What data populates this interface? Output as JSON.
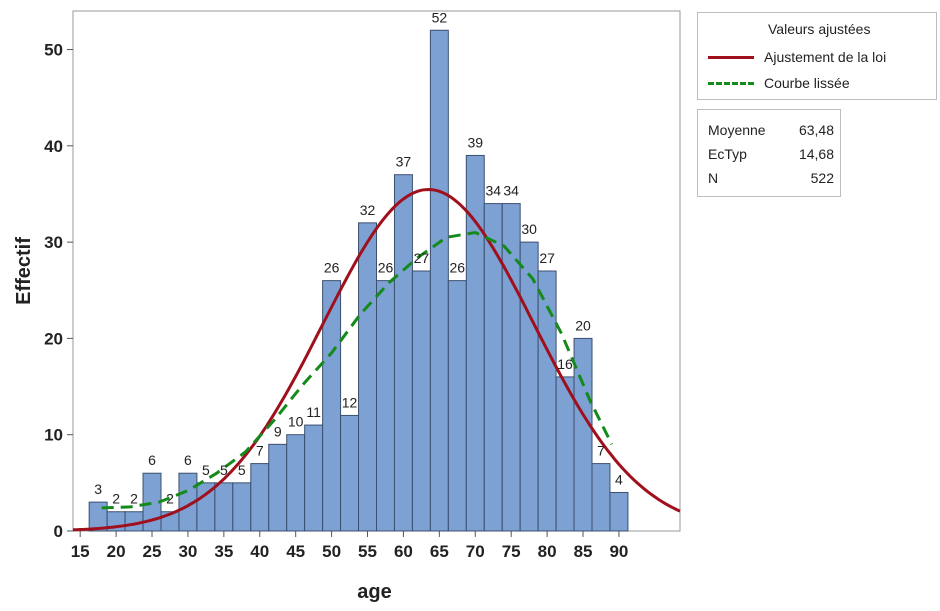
{
  "chart_data": {
    "type": "bar",
    "xlabel": "age",
    "ylabel": "Effectif",
    "xlim": [
      14,
      98.5
    ],
    "ylim": [
      0,
      54
    ],
    "bin_width": 2.5,
    "x_ticks": [
      15,
      20,
      25,
      30,
      35,
      40,
      45,
      50,
      55,
      60,
      65,
      70,
      75,
      80,
      85,
      90
    ],
    "y_ticks": [
      0,
      10,
      20,
      30,
      40,
      50
    ],
    "bins": [
      {
        "x": 17.5,
        "y": 3
      },
      {
        "x": 20,
        "y": 2
      },
      {
        "x": 22.5,
        "y": 2
      },
      {
        "x": 25,
        "y": 6
      },
      {
        "x": 27.5,
        "y": 2
      },
      {
        "x": 30,
        "y": 6
      },
      {
        "x": 32.5,
        "y": 5
      },
      {
        "x": 35,
        "y": 5
      },
      {
        "x": 37.5,
        "y": 5
      },
      {
        "x": 40,
        "y": 7
      },
      {
        "x": 42.5,
        "y": 9
      },
      {
        "x": 45,
        "y": 10
      },
      {
        "x": 47.5,
        "y": 11
      },
      {
        "x": 50,
        "y": 26
      },
      {
        "x": 52.5,
        "y": 12
      },
      {
        "x": 55,
        "y": 32
      },
      {
        "x": 57.5,
        "y": 26
      },
      {
        "x": 60,
        "y": 37
      },
      {
        "x": 62.5,
        "y": 27
      },
      {
        "x": 65,
        "y": 52
      },
      {
        "x": 67.5,
        "y": 26
      },
      {
        "x": 70,
        "y": 39
      },
      {
        "x": 72.5,
        "y": 34
      },
      {
        "x": 75,
        "y": 34
      },
      {
        "x": 77.5,
        "y": 30
      },
      {
        "x": 80,
        "y": 27
      },
      {
        "x": 82.5,
        "y": 16
      },
      {
        "x": 85,
        "y": 20
      },
      {
        "x": 87.5,
        "y": 7
      },
      {
        "x": 90,
        "y": 4
      }
    ],
    "bar_labels": [
      "3",
      "2",
      "2",
      "6",
      "2",
      "6",
      "5",
      "5",
      "5",
      "7",
      "9",
      "10",
      "11",
      "26",
      "12",
      "32",
      "26",
      "37",
      "27",
      "52",
      "26",
      "39",
      "34",
      "34",
      "30",
      "27",
      "16",
      "20",
      "7",
      "4"
    ],
    "series": [
      {
        "name": "Ajustement de la loi",
        "kind": "normal",
        "mean": 63.48,
        "std": 14.68,
        "n": 522,
        "color": "#a00f1c",
        "style": "solid"
      },
      {
        "name": "Courbe lissée",
        "kind": "smoothed",
        "color": "#138a1a",
        "style": "dashed",
        "points": [
          [
            18,
            2.4
          ],
          [
            22,
            2.5
          ],
          [
            26,
            3.0
          ],
          [
            30,
            4.2
          ],
          [
            34,
            6.0
          ],
          [
            38,
            8.2
          ],
          [
            42,
            11.5
          ],
          [
            46,
            15.2
          ],
          [
            50,
            18.5
          ],
          [
            54,
            22.5
          ],
          [
            58,
            25.8
          ],
          [
            62,
            28.4
          ],
          [
            66,
            30.5
          ],
          [
            70,
            31.0
          ],
          [
            74,
            29.6
          ],
          [
            78,
            26.2
          ],
          [
            82,
            20.5
          ],
          [
            86,
            13.5
          ],
          [
            89,
            9.0
          ]
        ]
      }
    ],
    "legend_position": "top-right",
    "grid": false
  },
  "legend": {
    "title": "Valeurs ajustées",
    "items": [
      "Ajustement de la loi",
      "Courbe lissée"
    ]
  },
  "stats": [
    {
      "label": "Moyenne",
      "value": "63,48"
    },
    {
      "label": "EcTyp",
      "value": "14,68"
    },
    {
      "label": "N",
      "value": "522"
    }
  ],
  "colors": {
    "bar_fill": "#7ea1d4",
    "bar_stroke": "#3b4f6e",
    "normal": "#a00f1c",
    "smoothed": "#138a1a"
  }
}
